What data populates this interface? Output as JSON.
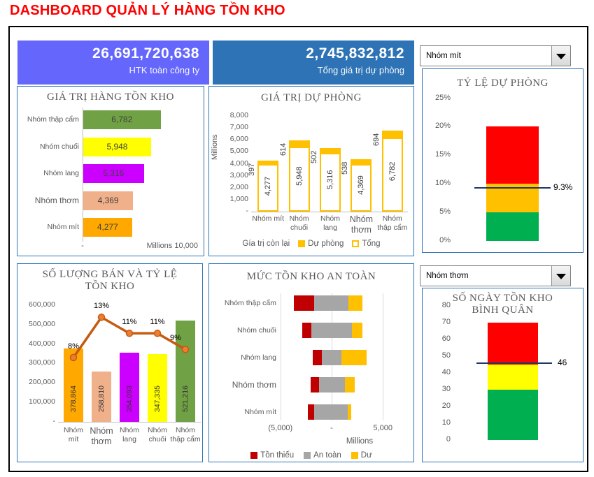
{
  "page_title": "DASHBOARD QUẢN LÝ HÀNG TỒN KHO",
  "kpi_cards": {
    "htk": {
      "value": "26,691,720,638",
      "label": "HTK toàn công ty",
      "color": "#6466FC"
    },
    "du_phong": {
      "value": "2,745,832,812",
      "label": "Tổng giá trị dự phòng",
      "color": "#2E73B5"
    }
  },
  "dropdowns": {
    "top": {
      "value": "Nhóm mít"
    },
    "bottom": {
      "value": "Nhóm thơm"
    }
  },
  "colors": {
    "panel_border": "#2E75B5",
    "gold": "#FFC000",
    "dark_red": "#C00000",
    "gray": "#A6A6A6",
    "navy_line": "#1F3864",
    "title_red": "#FF0000",
    "chart_title_gray": "#595959"
  },
  "chart_data": [
    {
      "id": "gia_tri_hang_ton_kho",
      "type": "bar",
      "orientation": "horizontal",
      "title": "GIÁ TRỊ HÀNG TỒN KHO",
      "categories": [
        "Nhóm thập cẩm",
        "Nhóm chuối",
        "Nhóm lang",
        "Nhóm thơm",
        "Nhóm mít"
      ],
      "values": [
        6782,
        5948,
        5316,
        4369,
        4277
      ],
      "value_labels": [
        "6,782",
        "5,948",
        "5,316",
        "4,369",
        "4,277"
      ],
      "bar_colors": [
        "#70A144",
        "#FFFF00",
        "#CC00FF",
        "#F0B089",
        "#FFA800"
      ],
      "xlim": [
        0,
        10000
      ],
      "x_axis_labels": [
        "-",
        "Millions",
        "10,000"
      ]
    },
    {
      "id": "gia_tri_du_phong",
      "type": "bar",
      "subtype": "stacked-column",
      "title": "GIÁ TRỊ DỰ PHÒNG",
      "axis_title": "Millions",
      "categories": [
        "Nhóm mít",
        "Nhóm chuối",
        "Nhóm lang",
        "Nhóm thơm",
        "Nhóm thập cẩm"
      ],
      "series": [
        {
          "name": "Gía trị còn lại",
          "values": [
            3880,
            5334,
            4814,
            3831,
            6088
          ]
        },
        {
          "name": "Dự phòng",
          "values": [
            397,
            614,
            502,
            538,
            694
          ],
          "color": "#FFC000"
        },
        {
          "name": "Tổng",
          "values": [
            4277,
            5948,
            5316,
            4369,
            6782
          ],
          "style": "outline"
        }
      ],
      "du_phong_labels": [
        "397",
        "614",
        "502",
        "538",
        "694"
      ],
      "tong_labels": [
        "4,277",
        "5,948",
        "5,316",
        "4,369",
        "6,782"
      ],
      "ylim": [
        0,
        8000
      ],
      "yticks": [
        "8,000",
        "7,000",
        "6,000",
        "5,000",
        "4,000",
        "3,000",
        "2,000",
        "1,000",
        "-"
      ],
      "legend": [
        "Gía trị còn lại",
        "Dự phòng",
        "Tổng"
      ]
    },
    {
      "id": "ty_le_du_phong",
      "type": "bar",
      "subtype": "threshold-gauge",
      "title": "TỶ LỆ DỰ PHÒNG",
      "ylim": [
        0,
        25
      ],
      "ytick_values": [
        25,
        20,
        15,
        10,
        5,
        0
      ],
      "yticks": [
        "25%",
        "20%",
        "15%",
        "10%",
        "5%",
        "0%"
      ],
      "zones": [
        {
          "from": 0,
          "to": 5,
          "color": "#00B050"
        },
        {
          "from": 5,
          "to": 10,
          "color": "#FFC000"
        },
        {
          "from": 10,
          "to": 20,
          "color": "#FF0000"
        }
      ],
      "marker_value": 9.3,
      "marker_label": "9.3%",
      "marker_color": "#1F3864"
    },
    {
      "id": "so_luong_ban",
      "type": "bar+line",
      "title": "SỐ LƯỢNG BÁN VÀ TỶ LỆ\nTỒN KHO",
      "categories": [
        "Nhóm mít",
        "Nhóm thơm",
        "Nhóm lang",
        "Nhóm chuối",
        "Nhóm thập cẩm"
      ],
      "bar_values": [
        378864,
        258810,
        354093,
        347335,
        521216
      ],
      "bar_labels": [
        "378,864",
        "258,810",
        "354,093",
        "347,335",
        "521,216"
      ],
      "bar_colors": [
        "#FFA800",
        "#F0B089",
        "#CC00FF",
        "#FFFF00",
        "#70A144"
      ],
      "line_values": [
        8,
        13,
        11,
        11,
        9
      ],
      "line_labels": [
        "8%",
        "13%",
        "11%",
        "11%",
        "9%"
      ],
      "ylim": [
        0,
        600000
      ],
      "yticks": [
        "600,000",
        "500,000",
        "400,000",
        "300,000",
        "200,000",
        "100,000",
        "-"
      ],
      "secondary_ylim": [
        0,
        14.5
      ],
      "line_color": "#C55A11",
      "marker_color": "#ED7D31"
    },
    {
      "id": "muc_ton_kho_an_toan",
      "type": "bar",
      "subtype": "diverging-stacked-horizontal",
      "title": "MỨC TỒN KHO AN TOÀN",
      "categories": [
        "Nhóm thập cẩm",
        "Nhóm chuối",
        "Nhóm lang",
        "Nhóm thơm",
        "Nhóm mít"
      ],
      "series": [
        {
          "name": "Tồn thiếu",
          "color": "#C00000",
          "ranges": [
            [
              -3700,
              -1700
            ],
            [
              -2900,
              -1980
            ],
            [
              -1840,
              -935
            ],
            [
              -2050,
              -1255
            ],
            [
              -2320,
              -1710
            ]
          ]
        },
        {
          "name": "An toàn",
          "color": "#A6A6A6",
          "ranges": [
            [
              -1700,
              1650
            ],
            [
              -1980,
              1950
            ],
            [
              -935,
              930
            ],
            [
              -1255,
              1270
            ],
            [
              -1710,
              1590
            ]
          ]
        },
        {
          "name": "Dư",
          "color": "#FFC000",
          "ranges": [
            [
              1650,
              3000
            ],
            [
              1950,
              3025
            ],
            [
              930,
              3415
            ],
            [
              1270,
              2275
            ],
            [
              1590,
              1930
            ]
          ]
        }
      ],
      "xlim": [
        -5000,
        5000
      ],
      "xticks": [
        "(5,000)",
        "-",
        "5,000"
      ],
      "axis_title": "Millions",
      "legend": [
        "Tồn thiếu",
        "An toàn",
        "Dư"
      ]
    },
    {
      "id": "so_ngay_ton_kho",
      "type": "bar",
      "subtype": "threshold-gauge",
      "title": "SỐ NGÀY TỒN KHO\nBÌNH QUÂN",
      "ylim": [
        0,
        80
      ],
      "ytick_values": [
        80,
        70,
        60,
        50,
        40,
        30,
        20,
        10,
        0
      ],
      "yticks": [
        "80",
        "70",
        "60",
        "50",
        "40",
        "30",
        "20",
        "10",
        "0"
      ],
      "zones": [
        {
          "from": 0,
          "to": 30,
          "color": "#00B050"
        },
        {
          "from": 30,
          "to": 45,
          "color": "#FFFF00"
        },
        {
          "from": 45,
          "to": 70,
          "color": "#FF0000"
        }
      ],
      "marker_value": 46,
      "marker_label": "46",
      "marker_color": "#1F3864"
    }
  ]
}
